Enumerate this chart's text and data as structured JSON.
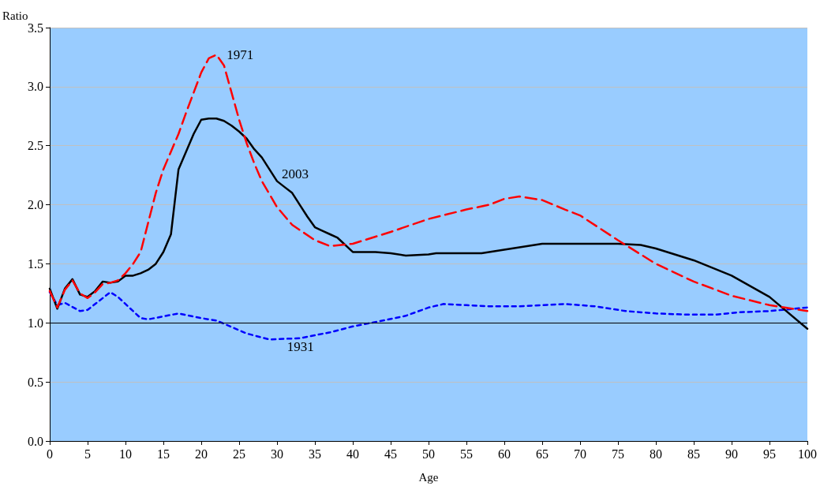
{
  "chart_data": {
    "type": "line",
    "xlabel": "Age",
    "ylabel": "Ratio",
    "xlim": [
      0,
      100
    ],
    "xticks": [
      0,
      5,
      10,
      15,
      20,
      25,
      30,
      35,
      40,
      45,
      50,
      55,
      60,
      65,
      70,
      75,
      80,
      85,
      90,
      95,
      100
    ],
    "ylim": [
      0,
      3.5
    ],
    "yticks": [
      {
        "value": 0,
        "label": "0.0"
      },
      {
        "value": 0.5,
        "label": "0.5"
      },
      {
        "value": 1,
        "label": "1.0"
      },
      {
        "value": 1.5,
        "label": "1.5"
      },
      {
        "value": 2,
        "label": "2.0"
      },
      {
        "value": 2.5,
        "label": "2.5"
      },
      {
        "value": 3,
        "label": "3.0"
      },
      {
        "value": 3.5,
        "label": "3.5"
      }
    ],
    "grid": "y",
    "marker": "none",
    "ref_lines": [
      {
        "axis": "y",
        "value": 1,
        "color": "#000000",
        "line_style": "solid"
      }
    ],
    "series": [
      {
        "name": "1971",
        "color": "#ff0000",
        "line_style": "dashed",
        "x": [
          0,
          1,
          2,
          3,
          4,
          5,
          6,
          7,
          8,
          9,
          10,
          11,
          12,
          13,
          14,
          15,
          16,
          17,
          18,
          19,
          20,
          21,
          22,
          23,
          24,
          25,
          26,
          27,
          28,
          30,
          32,
          35,
          37,
          40,
          43,
          45,
          50,
          55,
          58,
          60,
          62,
          65,
          68,
          70,
          75,
          80,
          85,
          90,
          95,
          100
        ],
        "values": [
          1.27,
          1.13,
          1.28,
          1.36,
          1.25,
          1.21,
          1.26,
          1.33,
          1.34,
          1.36,
          1.42,
          1.5,
          1.6,
          1.85,
          2.1,
          2.3,
          2.45,
          2.6,
          2.78,
          2.95,
          3.12,
          3.24,
          3.27,
          3.18,
          2.95,
          2.72,
          2.52,
          2.35,
          2.2,
          1.98,
          1.83,
          1.7,
          1.65,
          1.67,
          1.73,
          1.77,
          1.88,
          1.96,
          2,
          2.05,
          2.07,
          2.04,
          1.96,
          1.91,
          1.7,
          1.5,
          1.35,
          1.23,
          1.15,
          1.1
        ]
      },
      {
        "name": "2003",
        "color": "#000000",
        "line_style": "solid",
        "x": [
          0,
          1,
          2,
          3,
          4,
          5,
          6,
          7,
          8,
          9,
          10,
          11,
          12,
          13,
          14,
          15,
          16,
          17,
          18,
          19,
          20,
          21,
          22,
          23,
          24,
          25,
          26,
          27,
          28,
          29,
          30,
          31,
          32,
          33,
          34,
          35,
          36,
          37,
          38,
          40,
          43,
          45,
          47,
          50,
          51,
          57,
          60,
          65,
          67,
          70,
          75,
          78,
          80,
          85,
          90,
          95,
          100
        ],
        "values": [
          1.29,
          1.12,
          1.29,
          1.37,
          1.24,
          1.22,
          1.27,
          1.35,
          1.34,
          1.35,
          1.4,
          1.4,
          1.42,
          1.45,
          1.5,
          1.6,
          1.75,
          2.3,
          2.45,
          2.6,
          2.72,
          2.73,
          2.73,
          2.71,
          2.67,
          2.62,
          2.56,
          2.47,
          2.4,
          2.3,
          2.2,
          2.15,
          2.1,
          2,
          1.9,
          1.81,
          1.78,
          1.75,
          1.72,
          1.6,
          1.6,
          1.59,
          1.57,
          1.58,
          1.59,
          1.59,
          1.62,
          1.67,
          1.67,
          1.67,
          1.67,
          1.66,
          1.63,
          1.53,
          1.4,
          1.22,
          0.95
        ]
      },
      {
        "name": "1931",
        "color": "#0000ff",
        "line_style": "dotted",
        "x": [
          0,
          1,
          2,
          4,
          5,
          8,
          9,
          12,
          13,
          17,
          20,
          22,
          26,
          29,
          33,
          37,
          40,
          44,
          47,
          50,
          52,
          55,
          58,
          62,
          68,
          72,
          76,
          80,
          84,
          88,
          91,
          95,
          100
        ],
        "values": [
          1.26,
          1.15,
          1.17,
          1.1,
          1.11,
          1.26,
          1.22,
          1.04,
          1.03,
          1.08,
          1.04,
          1.02,
          0.91,
          0.86,
          0.87,
          0.92,
          0.97,
          1.02,
          1.06,
          1.13,
          1.16,
          1.15,
          1.14,
          1.14,
          1.16,
          1.14,
          1.1,
          1.08,
          1.07,
          1.07,
          1.09,
          1.1,
          1.13
        ]
      }
    ]
  }
}
